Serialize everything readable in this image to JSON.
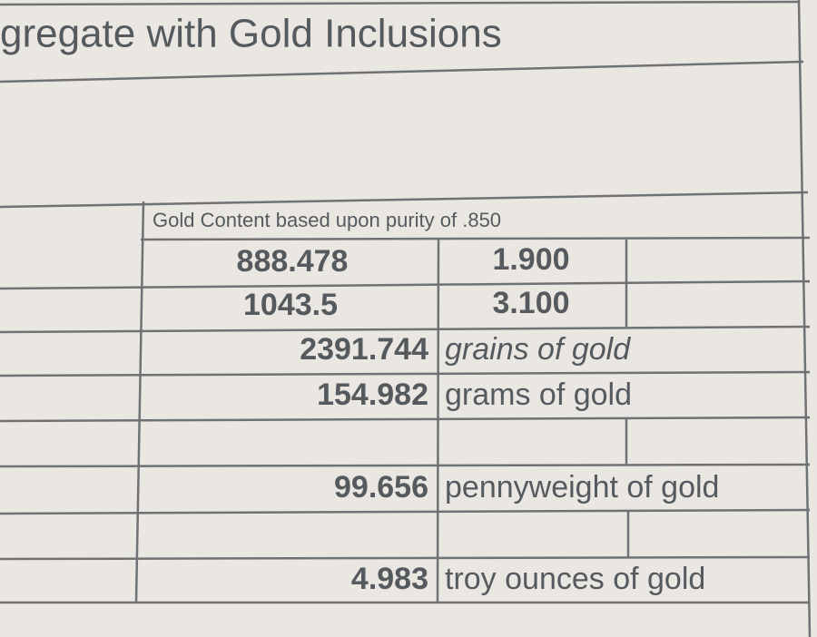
{
  "header": {
    "title": "gregate with Gold Inclusions"
  },
  "table": {
    "caption": "Gold Content based upon purity of .850",
    "rows": [
      [
        "888.478",
        "1.900"
      ],
      [
        "1043.5",
        "3.100"
      ],
      [
        "2391.744",
        "grains of gold"
      ],
      [
        "154.982",
        "grams of gold"
      ],
      [
        "99.656",
        "pennyweight of gold"
      ],
      [
        "4.983",
        "troy ounces of gold"
      ]
    ]
  }
}
